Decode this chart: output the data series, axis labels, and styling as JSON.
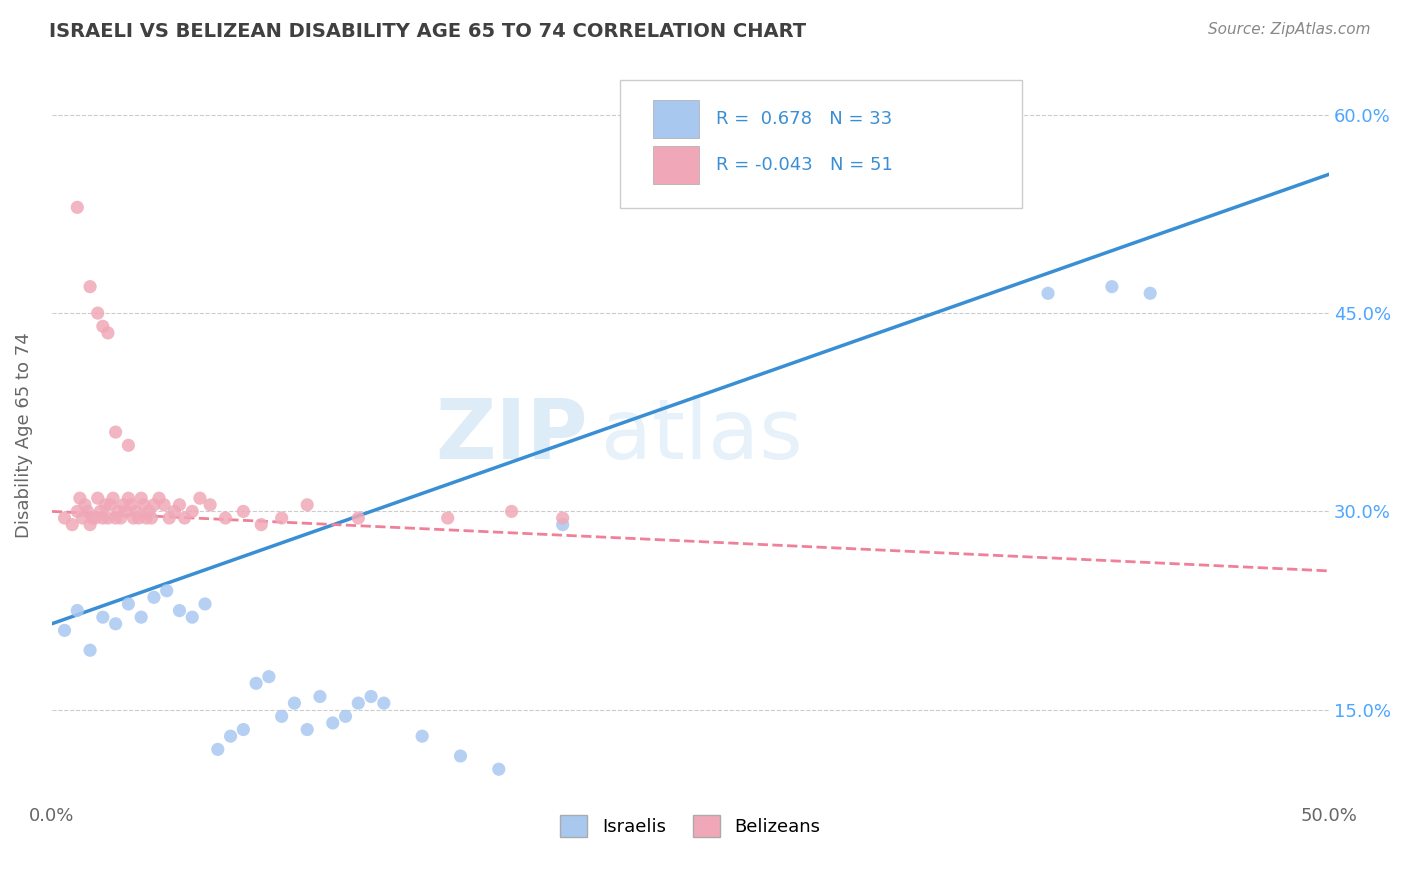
{
  "title": "ISRAELI VS BELIZEAN DISABILITY AGE 65 TO 74 CORRELATION CHART",
  "source_text": "Source: ZipAtlas.com",
  "ylabel": "Disability Age 65 to 74",
  "xlim": [
    0.0,
    0.5
  ],
  "ylim": [
    0.08,
    0.635
  ],
  "x_ticks": [
    0.0,
    0.05,
    0.1,
    0.15,
    0.2,
    0.25,
    0.3,
    0.35,
    0.4,
    0.45,
    0.5
  ],
  "x_tick_labels_show": [
    "0.0%",
    "",
    "",
    "",
    "",
    "",
    "",
    "",
    "",
    "",
    "50.0%"
  ],
  "y_ticks": [
    0.15,
    0.3,
    0.45,
    0.6
  ],
  "y_tick_labels": [
    "15.0%",
    "30.0%",
    "45.0%",
    "60.0%"
  ],
  "israeli_color": "#a8c8f0",
  "belizean_color": "#f0a8b8",
  "israeli_line_color": "#3a8fd4",
  "belizean_line_color": "#f08098",
  "R_israeli": 0.678,
  "N_israeli": 33,
  "R_belizean": -0.043,
  "N_belizean": 51,
  "background_color": "#ffffff",
  "grid_color": "#cccccc",
  "title_color": "#404040",
  "israeli_x": [
    0.005,
    0.01,
    0.015,
    0.02,
    0.025,
    0.03,
    0.035,
    0.04,
    0.045,
    0.05,
    0.055,
    0.06,
    0.065,
    0.07,
    0.075,
    0.08,
    0.085,
    0.09,
    0.095,
    0.1,
    0.105,
    0.11,
    0.115,
    0.12,
    0.125,
    0.13,
    0.145,
    0.16,
    0.175,
    0.2,
    0.39,
    0.415,
    0.43
  ],
  "israeli_y": [
    0.21,
    0.225,
    0.195,
    0.22,
    0.215,
    0.23,
    0.22,
    0.235,
    0.24,
    0.225,
    0.22,
    0.23,
    0.12,
    0.13,
    0.135,
    0.17,
    0.175,
    0.145,
    0.155,
    0.135,
    0.16,
    0.14,
    0.145,
    0.155,
    0.16,
    0.155,
    0.13,
    0.115,
    0.105,
    0.29,
    0.465,
    0.47,
    0.465
  ],
  "belizean_x": [
    0.005,
    0.008,
    0.01,
    0.011,
    0.012,
    0.013,
    0.014,
    0.015,
    0.016,
    0.017,
    0.018,
    0.019,
    0.02,
    0.021,
    0.022,
    0.023,
    0.024,
    0.025,
    0.026,
    0.027,
    0.028,
    0.029,
    0.03,
    0.031,
    0.032,
    0.033,
    0.034,
    0.035,
    0.036,
    0.037,
    0.038,
    0.039,
    0.04,
    0.042,
    0.044,
    0.046,
    0.048,
    0.05,
    0.052,
    0.055,
    0.058,
    0.062,
    0.068,
    0.075,
    0.082,
    0.09,
    0.1,
    0.12,
    0.155,
    0.18,
    0.2
  ],
  "belizean_y": [
    0.295,
    0.29,
    0.3,
    0.31,
    0.295,
    0.305,
    0.3,
    0.29,
    0.295,
    0.295,
    0.31,
    0.3,
    0.295,
    0.305,
    0.295,
    0.305,
    0.31,
    0.295,
    0.3,
    0.295,
    0.305,
    0.3,
    0.31,
    0.305,
    0.295,
    0.3,
    0.295,
    0.31,
    0.305,
    0.295,
    0.3,
    0.295,
    0.305,
    0.31,
    0.305,
    0.295,
    0.3,
    0.305,
    0.295,
    0.3,
    0.31,
    0.305,
    0.295,
    0.3,
    0.29,
    0.295,
    0.305,
    0.295,
    0.295,
    0.3,
    0.295
  ],
  "bel_outlier_x": [
    0.01,
    0.015,
    0.018,
    0.02,
    0.022,
    0.025,
    0.03
  ],
  "bel_outlier_y": [
    0.53,
    0.47,
    0.45,
    0.44,
    0.435,
    0.36,
    0.35
  ]
}
